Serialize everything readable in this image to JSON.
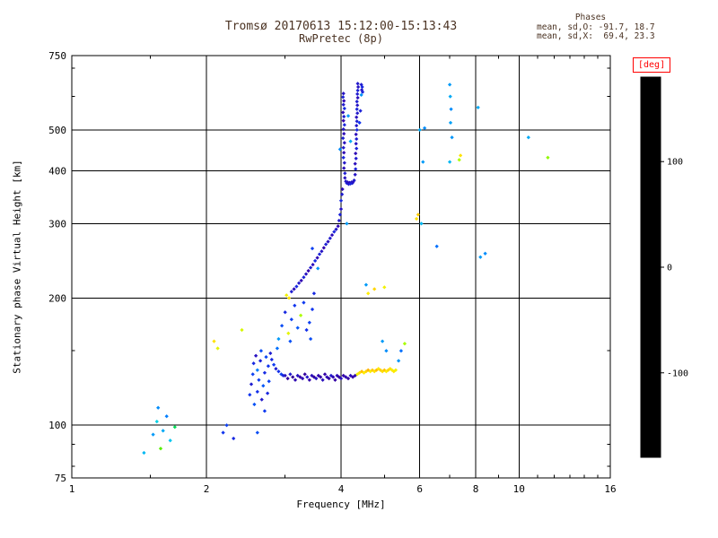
{
  "colors": {
    "header_text": "#4a3222",
    "axis": "#000000",
    "deg_label": "#ff0000",
    "background": "#ffffff"
  },
  "chart_data": {
    "type": "scatter",
    "title": "Tromsø 20170613 15:12:00-15:13:43",
    "subtitle": "RwPretec (8p)",
    "xlabel": "Frequency [MHz]",
    "ylabel": "Stationary phase Virtual Height [km]",
    "x_scale": "log",
    "y_scale": "log",
    "xlim": [
      1,
      16
    ],
    "ylim": [
      75,
      750
    ],
    "x_ticks_major": [
      1,
      2,
      4,
      6,
      8,
      10,
      16
    ],
    "x_ticks_minor": [
      1.5,
      3,
      5,
      7,
      9,
      11,
      12,
      13,
      14,
      15
    ],
    "y_ticks_major": [
      75,
      100,
      200,
      300,
      400,
      500,
      750
    ],
    "y_ticks_minor": [
      80,
      90,
      150,
      600,
      700
    ],
    "x_gridlines": [
      2,
      4,
      6,
      8,
      10
    ],
    "y_gridlines": [
      100,
      200,
      300,
      400,
      500
    ],
    "grid": true,
    "legend_position": "right-colorbar",
    "phases": {
      "label": "Phases",
      "o_line": "mean, sd,O: -91.7, 18.7",
      "x_line": "mean, sd,X:  69.4, 23.3"
    },
    "colorbar": {
      "label": "[deg]",
      "ticks": [
        100,
        0,
        -100
      ],
      "range": [
        -180,
        180
      ]
    },
    "colormap_stops": [
      [
        0,
        "#000000"
      ],
      [
        0.08,
        "#2a0050"
      ],
      [
        0.16,
        "#3300aa"
      ],
      [
        0.22,
        "#1133ee"
      ],
      [
        0.3,
        "#0077ff"
      ],
      [
        0.38,
        "#00ccee"
      ],
      [
        0.44,
        "#00eebb"
      ],
      [
        0.5,
        "#00dd55"
      ],
      [
        0.58,
        "#55ee00"
      ],
      [
        0.68,
        "#bbff00"
      ],
      [
        0.75,
        "#ffee00"
      ],
      [
        0.83,
        "#ffaa00"
      ],
      [
        0.9,
        "#ff4400"
      ],
      [
        1,
        "#ff0000"
      ]
    ],
    "point_fields": [
      "frequency_mhz",
      "virtual_height_km",
      "phase_deg"
    ],
    "points": [
      [
        3.0,
        131,
        -118
      ],
      [
        3.04,
        129,
        -125
      ],
      [
        3.08,
        132,
        -112
      ],
      [
        3.12,
        130,
        -128
      ],
      [
        3.16,
        128,
        -120
      ],
      [
        3.2,
        131,
        -115
      ],
      [
        3.24,
        130,
        -124
      ],
      [
        3.28,
        129,
        -119
      ],
      [
        3.32,
        132,
        -126
      ],
      [
        3.36,
        130,
        -113
      ],
      [
        3.4,
        128,
        -122
      ],
      [
        3.44,
        131,
        -117
      ],
      [
        3.48,
        130,
        -127
      ],
      [
        3.52,
        129,
        -114
      ],
      [
        3.56,
        131,
        -121
      ],
      [
        3.6,
        130,
        -125
      ],
      [
        3.64,
        128,
        -116
      ],
      [
        3.68,
        132,
        -123
      ],
      [
        3.72,
        130,
        -119
      ],
      [
        3.76,
        129,
        -126
      ],
      [
        3.8,
        131,
        -112
      ],
      [
        3.84,
        130,
        -120
      ],
      [
        3.88,
        128,
        -124
      ],
      [
        3.92,
        131,
        -118
      ],
      [
        3.96,
        130,
        -126
      ],
      [
        4.0,
        129,
        -115
      ],
      [
        4.05,
        131,
        -122
      ],
      [
        4.1,
        130,
        -119
      ],
      [
        4.15,
        129,
        -125
      ],
      [
        4.2,
        131,
        -117
      ],
      [
        4.25,
        130,
        -123
      ],
      [
        4.3,
        131,
        -120
      ],
      [
        4.35,
        132,
        85
      ],
      [
        4.4,
        133,
        95
      ],
      [
        4.45,
        134,
        110
      ],
      [
        4.5,
        133,
        90
      ],
      [
        4.55,
        134,
        100
      ],
      [
        4.6,
        135,
        115
      ],
      [
        4.65,
        134,
        88
      ],
      [
        4.7,
        135,
        105
      ],
      [
        4.75,
        134,
        95
      ],
      [
        4.8,
        135,
        112
      ],
      [
        4.85,
        136,
        92
      ],
      [
        4.9,
        135,
        102
      ],
      [
        4.95,
        134,
        97
      ],
      [
        5.0,
        135,
        108
      ],
      [
        5.05,
        134,
        90
      ],
      [
        5.1,
        135,
        100
      ],
      [
        5.15,
        136,
        95
      ],
      [
        5.2,
        135,
        88
      ],
      [
        5.25,
        134,
        93
      ],
      [
        5.3,
        135,
        85
      ],
      [
        5.38,
        142,
        -62
      ],
      [
        5.45,
        150,
        -75
      ],
      [
        5.55,
        156,
        58
      ],
      [
        4.95,
        158,
        -60
      ],
      [
        5.05,
        150,
        -65
      ],
      [
        2.5,
        118,
        -100
      ],
      [
        2.52,
        125,
        -110
      ],
      [
        2.54,
        132,
        -95
      ],
      [
        2.55,
        140,
        -105
      ],
      [
        2.56,
        112,
        -88
      ],
      [
        2.58,
        146,
        -115
      ],
      [
        2.6,
        120,
        -102
      ],
      [
        2.6,
        135,
        -70
      ],
      [
        2.62,
        128,
        -96
      ],
      [
        2.64,
        142,
        -108
      ],
      [
        2.65,
        150,
        -90
      ],
      [
        2.66,
        115,
        -112
      ],
      [
        2.68,
        124,
        -85
      ],
      [
        2.7,
        133,
        -104
      ],
      [
        2.7,
        108,
        -98
      ],
      [
        2.72,
        145,
        -92
      ],
      [
        2.74,
        119,
        -106
      ],
      [
        2.75,
        138,
        -100
      ],
      [
        2.76,
        127,
        -94
      ],
      [
        2.78,
        148,
        -110
      ],
      [
        2.8,
        143,
        -105
      ],
      [
        2.83,
        139,
        -98
      ],
      [
        2.86,
        136,
        -110
      ],
      [
        2.9,
        134,
        -102
      ],
      [
        2.94,
        132,
        -96
      ],
      [
        2.97,
        131,
        -108
      ],
      [
        2.9,
        160,
        -60
      ],
      [
        2.95,
        172,
        -90
      ],
      [
        3.0,
        185,
        -105
      ],
      [
        3.05,
        165,
        80
      ],
      [
        3.1,
        178,
        -95
      ],
      [
        3.15,
        192,
        -100
      ],
      [
        3.2,
        170,
        -85
      ],
      [
        3.25,
        182,
        60
      ],
      [
        3.3,
        195,
        -98
      ],
      [
        3.35,
        168,
        -102
      ],
      [
        2.88,
        152,
        -75
      ],
      [
        3.08,
        158,
        -88
      ],
      [
        3.4,
        175,
        -95
      ],
      [
        3.45,
        188,
        -100
      ],
      [
        3.42,
        160,
        -90
      ],
      [
        3.48,
        205,
        -105
      ],
      [
        3.02,
        203,
        85
      ],
      [
        3.06,
        200,
        95
      ],
      [
        3.1,
        207,
        -110
      ],
      [
        3.14,
        210,
        -118
      ],
      [
        3.18,
        213,
        -105
      ],
      [
        3.22,
        217,
        -112
      ],
      [
        3.26,
        220,
        -120
      ],
      [
        3.3,
        224,
        -108
      ],
      [
        3.34,
        228,
        -115
      ],
      [
        3.38,
        232,
        -122
      ],
      [
        3.42,
        236,
        -110
      ],
      [
        3.46,
        240,
        -117
      ],
      [
        3.5,
        245,
        -104
      ],
      [
        3.54,
        249,
        -119
      ],
      [
        3.58,
        254,
        -107
      ],
      [
        3.62,
        258,
        -114
      ],
      [
        3.66,
        263,
        -121
      ],
      [
        3.7,
        268,
        -109
      ],
      [
        3.74,
        272,
        -116
      ],
      [
        3.78,
        277,
        -111
      ],
      [
        3.82,
        282,
        -118
      ],
      [
        3.86,
        287,
        -106
      ],
      [
        3.9,
        291,
        -113
      ],
      [
        3.94,
        296,
        -120
      ],
      [
        3.55,
        235,
        -62
      ],
      [
        3.45,
        262,
        -95
      ],
      [
        3.98,
        450,
        -65
      ],
      [
        3.96,
        305,
        -112
      ],
      [
        3.98,
        315,
        -108
      ],
      [
        4.0,
        325,
        -115
      ],
      [
        4.0,
        340,
        -105
      ],
      [
        4.02,
        352,
        -110
      ],
      [
        4.03,
        362,
        -118
      ],
      [
        4.05,
        610,
        -115
      ],
      [
        4.04,
        598,
        -108
      ],
      [
        4.06,
        586,
        -120
      ],
      [
        4.05,
        574,
        -112
      ],
      [
        4.07,
        562,
        -105
      ],
      [
        4.04,
        550,
        -118
      ],
      [
        4.06,
        538,
        -110
      ],
      [
        4.05,
        526,
        -122
      ],
      [
        4.07,
        514,
        -107
      ],
      [
        4.05,
        502,
        -114
      ],
      [
        4.06,
        490,
        -119
      ],
      [
        4.04,
        478,
        -109
      ],
      [
        4.07,
        466,
        -116
      ],
      [
        4.05,
        454,
        -111
      ],
      [
        4.06,
        442,
        -120
      ],
      [
        4.05,
        430,
        -106
      ],
      [
        4.07,
        418,
        -113
      ],
      [
        4.06,
        406,
        -117
      ],
      [
        4.08,
        395,
        -110
      ],
      [
        4.08,
        385,
        -115
      ],
      [
        4.1,
        378,
        -112
      ],
      [
        4.12,
        374,
        -108
      ],
      [
        4.14,
        376,
        -115
      ],
      [
        4.16,
        372,
        -110
      ],
      [
        4.18,
        375,
        -118
      ],
      [
        4.2,
        373,
        -106
      ],
      [
        4.22,
        376,
        -113
      ],
      [
        4.24,
        374,
        -109
      ],
      [
        4.26,
        377,
        -116
      ],
      [
        4.28,
        380,
        -111
      ],
      [
        4.3,
        392,
        -114
      ],
      [
        4.31,
        404,
        -108
      ],
      [
        4.3,
        416,
        -117
      ],
      [
        4.32,
        428,
        -111
      ],
      [
        4.31,
        440,
        -119
      ],
      [
        4.33,
        452,
        -107
      ],
      [
        4.32,
        464,
        -115
      ],
      [
        4.33,
        476,
        -110
      ],
      [
        4.32,
        488,
        -118
      ],
      [
        4.34,
        500,
        -105
      ],
      [
        4.33,
        512,
        -113
      ],
      [
        4.34,
        524,
        -109
      ],
      [
        4.33,
        536,
        -116
      ],
      [
        4.35,
        548,
        -112
      ],
      [
        4.34,
        560,
        -107
      ],
      [
        4.35,
        572,
        -114
      ],
      [
        4.34,
        584,
        -110
      ],
      [
        4.36,
        596,
        -117
      ],
      [
        4.35,
        608,
        -111
      ],
      [
        4.36,
        620,
        -108
      ],
      [
        4.37,
        632,
        -115
      ],
      [
        4.36,
        644,
        -112
      ],
      [
        4.44,
        640,
        -110
      ],
      [
        4.46,
        632,
        -105
      ],
      [
        4.45,
        622,
        -113
      ],
      [
        4.47,
        615,
        -108
      ],
      [
        4.44,
        605,
        -62
      ],
      [
        4.15,
        540,
        -60
      ],
      [
        4.2,
        470,
        -55
      ],
      [
        4.12,
        300,
        -60
      ],
      [
        4.4,
        520,
        -100
      ],
      [
        4.42,
        555,
        -108
      ],
      [
        1.52,
        95,
        -60
      ],
      [
        1.55,
        102,
        -40
      ],
      [
        1.58,
        88,
        30
      ],
      [
        1.6,
        97,
        -55
      ],
      [
        1.63,
        105,
        -70
      ],
      [
        1.66,
        92,
        -45
      ],
      [
        1.7,
        99,
        0
      ],
      [
        1.56,
        110,
        -65
      ],
      [
        1.45,
        86,
        -50
      ],
      [
        2.18,
        96,
        -100
      ],
      [
        2.22,
        100,
        -95
      ],
      [
        2.3,
        93,
        -105
      ],
      [
        2.12,
        152,
        80
      ],
      [
        2.08,
        158,
        95
      ],
      [
        2.4,
        168,
        75
      ],
      [
        2.6,
        96,
        -90
      ],
      [
        4.6,
        205,
        90
      ],
      [
        4.75,
        210,
        100
      ],
      [
        5.0,
        212,
        85
      ],
      [
        4.55,
        215,
        -60
      ],
      [
        5.9,
        308,
        95
      ],
      [
        5.95,
        315,
        105
      ],
      [
        6.05,
        300,
        -50
      ],
      [
        6.1,
        420,
        -60
      ],
      [
        6.0,
        500,
        -55
      ],
      [
        6.15,
        505,
        -65
      ],
      [
        6.55,
        265,
        -75
      ],
      [
        7.0,
        640,
        -60
      ],
      [
        7.02,
        600,
        -55
      ],
      [
        7.05,
        560,
        -65
      ],
      [
        7.03,
        520,
        -58
      ],
      [
        7.08,
        480,
        -62
      ],
      [
        7.0,
        420,
        -50
      ],
      [
        7.35,
        425,
        60
      ],
      [
        7.4,
        435,
        95
      ],
      [
        8.2,
        250,
        -60
      ],
      [
        8.4,
        255,
        -65
      ],
      [
        8.1,
        565,
        -55
      ],
      [
        10.5,
        480,
        -55
      ],
      [
        11.6,
        430,
        50
      ]
    ]
  }
}
